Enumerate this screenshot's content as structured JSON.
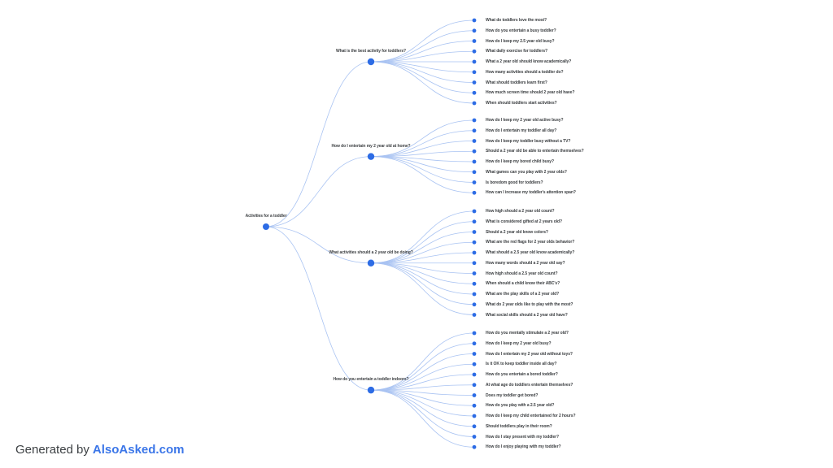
{
  "colors": {
    "node_dot": "#2d6ce5",
    "edge": "#a9c3f2",
    "label_text": "#3d4043",
    "footer_text": "#3c4043",
    "footer_link": "#3b76e8",
    "background": "#ffffff"
  },
  "footer": {
    "prefix": "Generated by",
    "link": "AlsoAsked.com"
  },
  "tree": {
    "root": "Activities for a toddler",
    "branches": [
      {
        "label": "What is the best activity for toddlers?",
        "children": [
          "What do toddlers love the most?",
          "How do you entertain a busy toddler?",
          "How do I keep my 2.5 year old busy?",
          "What daily exercise for toddlers?",
          "What a 2 year old should know academically?",
          "How many activities should a toddler do?",
          "What should toddlers learn first?",
          "How much screen time should 2 year old have?",
          "When should toddlers start activities?"
        ]
      },
      {
        "label": "How do I entertain my 2 year old at home?",
        "children": [
          "How do I keep my 2 year old active busy?",
          "How do I entertain my toddler all day?",
          "How do I keep my toddler busy without a TV?",
          "Should a 2 year old be able to entertain themselves?",
          "How do I keep my bored child busy?",
          "What games can you play with 2 year olds?",
          "Is boredom good for toddlers?",
          "How can I increase my toddler's attention span?"
        ]
      },
      {
        "label": "What activities should a 2 year old be doing?",
        "children": [
          "How high should a 2 year old count?",
          "What is considered gifted at 2 years old?",
          "Should a 2 year old know colors?",
          "What are the red flags for 2 year olds behavior?",
          "What should a 2.5 year old know academically?",
          "How many words should a 2 year old say?",
          "How high should a 2.5 year old count?",
          "When should a child know their ABC's?",
          "What are the play skills of a 2 year old?",
          "What do 2 year olds like to play with the most?",
          "What social skills should a 2 year old have?"
        ]
      },
      {
        "label": "How do you entertain a toddler indoors?",
        "children": [
          "How do you mentally stimulate a 2 year old?",
          "How do I keep my 2 year old busy?",
          "How do I entertain my 2 year old without toys?",
          "Is it OK to keep toddler inside all day?",
          "How do you entertain a bored toddler?",
          "At what age do toddlers entertain themselves?",
          "Does my toddler get bored?",
          "How do you play with a 2.5 year old?",
          "How do I keep my child entertained for 2 hours?",
          "Should toddlers play in their room?",
          "How do I stay present with my toddler?",
          "How do I enjoy playing with my toddler?"
        ]
      }
    ]
  }
}
